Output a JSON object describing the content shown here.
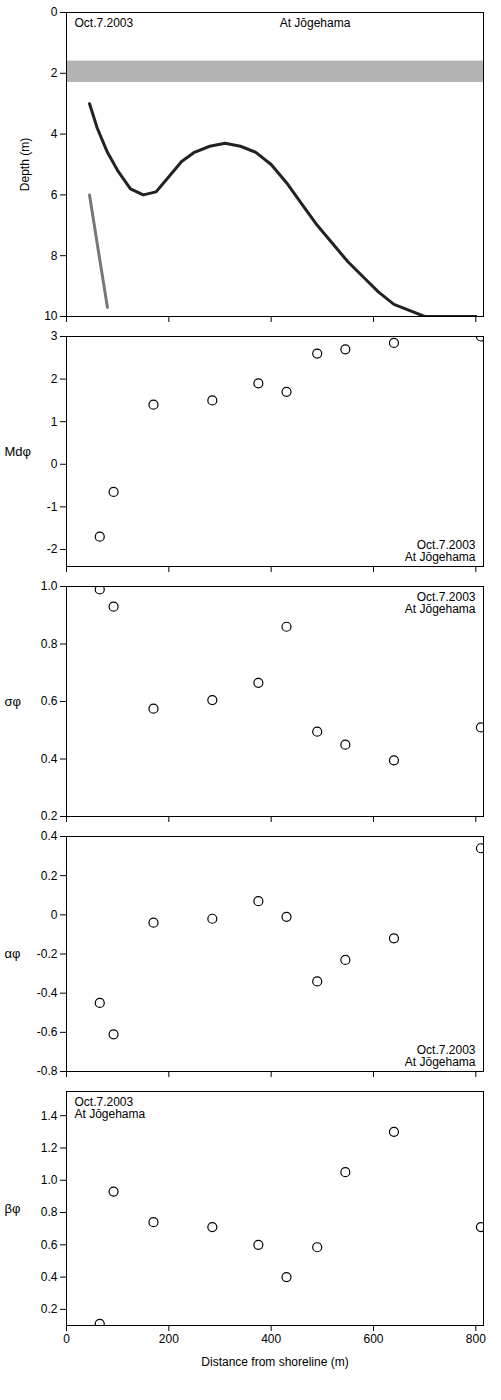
{
  "chart_data": [
    {
      "type": "line",
      "annotations": [
        "Oct.7.2003",
        "At Jōgehama"
      ],
      "y_label": "Depth (m)",
      "x": [
        45,
        60,
        80,
        100,
        125,
        150,
        175,
        200,
        225,
        250,
        280,
        310,
        340,
        370,
        400,
        430,
        460,
        490,
        520,
        550,
        580,
        610,
        640,
        670,
        700,
        750,
        800
      ],
      "series": [
        {
          "color": "#222222",
          "values": [
            3.0,
            3.8,
            4.6,
            5.2,
            5.8,
            6.0,
            5.9,
            5.4,
            4.9,
            4.6,
            4.4,
            4.3,
            4.4,
            4.6,
            5.0,
            5.6,
            6.3,
            7.0,
            7.6,
            8.2,
            8.7,
            9.2,
            9.6,
            9.8,
            10.0,
            10.0,
            10.0
          ]
        },
        {
          "color": "#777777",
          "values": [
            6.0,
            7.6,
            9.7,
            null,
            null,
            null,
            null,
            null,
            null,
            null,
            null,
            null,
            null,
            null,
            null,
            null,
            null,
            null,
            null,
            null,
            null,
            null,
            null,
            null,
            null,
            null,
            null
          ]
        }
      ],
      "band": [
        1.6,
        2.3
      ],
      "xlim": [
        0,
        815
      ],
      "xticks": [
        0,
        200,
        400,
        600,
        800
      ],
      "ylim": [
        0,
        10
      ],
      "yticks": [
        0,
        2,
        4,
        6,
        8,
        10
      ],
      "tick_labels": "y"
    },
    {
      "type": "scatter",
      "annotations": [
        "Oct.7.2003",
        "At Jōgehama"
      ],
      "y_label": "Mdφ",
      "x": [
        65,
        92,
        170,
        285,
        375,
        430,
        490,
        545,
        640,
        810
      ],
      "values": [
        -1.7,
        -0.65,
        1.4,
        1.5,
        1.9,
        1.7,
        2.6,
        2.7,
        2.85,
        3.0
      ],
      "color": "#000000",
      "marker": "circle",
      "xlim": [
        0,
        815
      ],
      "xticks": [
        0,
        200,
        400,
        600,
        800
      ],
      "ylim": [
        -2.4,
        3
      ],
      "yticks": [
        -2,
        -1,
        0,
        1,
        2,
        3
      ],
      "tick_labels": "y"
    },
    {
      "type": "scatter",
      "annotations": [
        "Oct.7.2003",
        "At Jōgehama"
      ],
      "y_label": "σφ",
      "x": [
        65,
        92,
        170,
        285,
        375,
        430,
        490,
        545,
        640,
        810
      ],
      "values": [
        0.99,
        0.93,
        0.575,
        0.605,
        0.665,
        0.86,
        0.495,
        0.45,
        0.395,
        0.51
      ],
      "color": "#000000",
      "marker": "circle",
      "xlim": [
        0,
        815
      ],
      "xticks": [
        0,
        200,
        400,
        600,
        800
      ],
      "ylim": [
        0.2,
        1.0
      ],
      "yticks": [
        0.2,
        0.4,
        0.6,
        0.8,
        {
          "value": 1,
          "label": "1.0"
        }
      ],
      "tick_labels": "y"
    },
    {
      "type": "scatter",
      "annotations": [
        "Oct.7.2003",
        "At Jōgehama"
      ],
      "y_label": "αφ",
      "x": [
        65,
        92,
        170,
        285,
        375,
        430,
        490,
        545,
        640,
        810
      ],
      "values": [
        -0.45,
        -0.61,
        -0.04,
        -0.02,
        0.07,
        -0.01,
        -0.34,
        -0.23,
        -0.12,
        0.34
      ],
      "color": "#000000",
      "marker": "circle",
      "xlim": [
        0,
        815
      ],
      "xticks": [
        0,
        200,
        400,
        600,
        800
      ],
      "ylim": [
        -0.8,
        0.4
      ],
      "yticks": [
        -0.8,
        -0.6,
        -0.4,
        -0.2,
        0,
        0.2,
        0.4
      ],
      "tick_labels": "y"
    },
    {
      "type": "scatter",
      "annotations": [
        "Oct.7.2003",
        "At Jōgehama"
      ],
      "y_label": "βφ",
      "x_label": "Distance from shoreline (m)",
      "x": [
        65,
        92,
        170,
        285,
        375,
        430,
        490,
        545,
        640,
        810
      ],
      "values": [
        0.11,
        0.93,
        0.74,
        0.71,
        0.6,
        0.4,
        0.585,
        1.05,
        1.3,
        0.71
      ],
      "color": "#000000",
      "marker": "circle",
      "xlim": [
        0,
        815
      ],
      "xticks": [
        0,
        200,
        400,
        600,
        800
      ],
      "ylim": [
        0.1,
        1.55
      ],
      "yticks": [
        0.2,
        0.4,
        0.6,
        0.8,
        {
          "value": 1,
          "label": "1.0"
        },
        1.2,
        1.4
      ]
    }
  ]
}
